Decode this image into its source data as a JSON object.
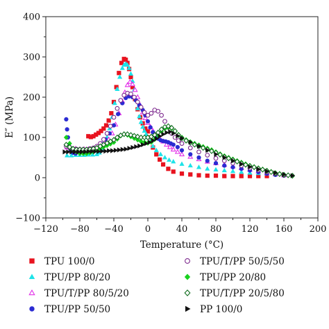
{
  "chart_data": {
    "type": "scatter",
    "title": "",
    "xlabel": "Temperature (°C)",
    "ylabel": "E″ (MPa)",
    "xlim": [
      -120,
      200
    ],
    "ylim": [
      -100,
      400
    ],
    "xticks": [
      -120,
      -80,
      -40,
      0,
      40,
      80,
      120,
      160,
      200
    ],
    "yticks": [
      -100,
      0,
      100,
      200,
      300,
      400
    ],
    "xtick_labels": [
      "−120",
      "−80",
      "−40",
      "0",
      "40",
      "80",
      "120",
      "160",
      "200"
    ],
    "ytick_labels": [
      "−100",
      "0",
      "100",
      "200",
      "300",
      "400"
    ],
    "grid": false,
    "legend_position": "bottom",
    "series": [
      {
        "name": "TPU 100/0",
        "color": "#e8131f",
        "marker": "square",
        "filled": true,
        "x": [
          -70,
          -67,
          -64,
          -61,
          -58,
          -55,
          -52,
          -49,
          -46,
          -43,
          -40,
          -37,
          -34,
          -31,
          -28,
          -26,
          -24,
          -22,
          -20,
          -18,
          -15,
          -12,
          -9,
          -6,
          -3,
          0,
          3,
          6,
          10,
          14,
          18,
          24,
          30,
          40,
          50,
          60,
          70,
          80,
          90,
          100,
          110,
          120,
          130,
          140
        ],
        "y": [
          103,
          101,
          103,
          107,
          111,
          116,
          122,
          130,
          142,
          160,
          188,
          225,
          260,
          285,
          295,
          293,
          285,
          270,
          250,
          225,
          195,
          170,
          150,
          135,
          122,
          115,
          100,
          75,
          58,
          45,
          33,
          22,
          15,
          10,
          8,
          6,
          5,
          5,
          4,
          4,
          4,
          4,
          4,
          4
        ]
      },
      {
        "name": "TPU/PP 80/20",
        "color": "#1ee3e8",
        "marker": "triangle",
        "filled": true,
        "x": [
          -95,
          -90,
          -85,
          -80,
          -75,
          -70,
          -65,
          -60,
          -57,
          -54,
          -51,
          -48,
          -45,
          -42,
          -39,
          -36,
          -33,
          -30,
          -28,
          -26,
          -24,
          -22,
          -20,
          -18,
          -16,
          -14,
          -12,
          -10,
          -8,
          -6,
          -4,
          -2,
          0,
          3,
          6,
          10,
          15,
          20,
          25,
          30,
          40,
          50,
          60,
          70,
          80,
          90,
          100,
          110,
          120,
          130,
          140,
          150,
          160
        ],
        "y": [
          55,
          55,
          56,
          56,
          56,
          57,
          57,
          58,
          62,
          70,
          82,
          100,
          122,
          150,
          185,
          220,
          250,
          272,
          280,
          283,
          280,
          272,
          258,
          240,
          218,
          195,
          172,
          152,
          138,
          126,
          116,
          108,
          100,
          90,
          78,
          68,
          58,
          50,
          44,
          40,
          34,
          30,
          26,
          22,
          20,
          18,
          16,
          14,
          12,
          11,
          10,
          8,
          6
        ]
      },
      {
        "name": "TPU/T/PP 80/5/20",
        "color": "#e22fe8",
        "marker": "triangle",
        "filled": false,
        "x": [
          -95,
          -90,
          -85,
          -80,
          -75,
          -70,
          -65,
          -60,
          -55,
          -50,
          -46,
          -42,
          -38,
          -34,
          -30,
          -27,
          -24,
          -21,
          -18,
          -15,
          -12,
          -9,
          -6,
          -3,
          0,
          3,
          6,
          10,
          14,
          18,
          22,
          26,
          30,
          35,
          40,
          50,
          60,
          70,
          80,
          90,
          100,
          110,
          120,
          130,
          140,
          150,
          160
        ],
        "y": [
          75,
          73,
          72,
          71,
          71,
          71,
          72,
          74,
          78,
          85,
          95,
          110,
          132,
          160,
          190,
          212,
          230,
          238,
          232,
          218,
          200,
          180,
          162,
          148,
          136,
          126,
          116,
          106,
          98,
          90,
          82,
          76,
          70,
          64,
          58,
          52,
          46,
          40,
          36,
          32,
          28,
          24,
          20,
          16,
          12,
          9,
          6
        ]
      },
      {
        "name": "TPU/PP 50/50",
        "color": "#2b2bd2",
        "marker": "circle",
        "filled": true,
        "x": [
          -96,
          -95,
          -94,
          -93,
          -91,
          -88,
          -85,
          -80,
          -75,
          -70,
          -65,
          -60,
          -55,
          -50,
          -45,
          -40,
          -35,
          -30,
          -26,
          -22,
          -18,
          -14,
          -10,
          -6,
          -3,
          0,
          3,
          6,
          9,
          12,
          15,
          18,
          21,
          24,
          27,
          30,
          35,
          40,
          50,
          60,
          70,
          80,
          90,
          100,
          110,
          120,
          130,
          140,
          150,
          160
        ],
        "y": [
          145,
          120,
          100,
          80,
          70,
          62,
          60,
          62,
          65,
          68,
          72,
          78,
          85,
          95,
          110,
          130,
          158,
          185,
          198,
          202,
          200,
          192,
          180,
          168,
          155,
          140,
          125,
          113,
          103,
          97,
          93,
          91,
          90,
          88,
          85,
          82,
          76,
          68,
          58,
          50,
          42,
          36,
          30,
          26,
          22,
          18,
          14,
          10,
          7,
          5
        ]
      },
      {
        "name": "TPU/T/PP 50/5/50",
        "color": "#7d2a8e",
        "marker": "circle",
        "filled": false,
        "x": [
          -96,
          -92,
          -88,
          -84,
          -80,
          -76,
          -72,
          -68,
          -64,
          -60,
          -56,
          -52,
          -48,
          -44,
          -40,
          -36,
          -32,
          -28,
          -24,
          -20,
          -16,
          -12,
          -8,
          -4,
          0,
          4,
          8,
          12,
          16,
          20,
          24,
          28,
          32,
          36,
          40,
          50,
          60,
          70,
          80,
          90,
          100,
          110,
          120,
          130,
          140,
          150,
          160
        ],
        "y": [
          78,
          74,
          72,
          71,
          70,
          70,
          70,
          72,
          74,
          78,
          85,
          95,
          110,
          128,
          150,
          172,
          192,
          205,
          210,
          208,
          200,
          188,
          175,
          162,
          155,
          160,
          168,
          165,
          155,
          140,
          125,
          110,
          100,
          92,
          85,
          74,
          64,
          56,
          48,
          42,
          36,
          30,
          24,
          19,
          14,
          10,
          6
        ]
      },
      {
        "name": "TPU/PP 20/80",
        "color": "#18d11e",
        "marker": "diamond",
        "filled": true,
        "x": [
          -96,
          -92,
          -88,
          -84,
          -80,
          -76,
          -72,
          -68,
          -64,
          -60,
          -56,
          -52,
          -48,
          -44,
          -40,
          -36,
          -32,
          -28,
          -24,
          -20,
          -16,
          -12,
          -8,
          -4,
          0,
          4,
          8,
          12,
          16,
          20,
          24,
          28,
          32,
          36,
          40,
          45,
          50,
          55,
          60,
          65,
          70,
          75,
          80,
          85,
          90,
          95,
          100,
          105,
          110,
          115,
          120,
          125,
          130,
          135,
          140,
          145,
          150,
          155,
          160,
          165,
          170
        ],
        "y": [
          100,
          85,
          72,
          64,
          60,
          60,
          60,
          62,
          64,
          68,
          72,
          76,
          80,
          84,
          88,
          96,
          104,
          108,
          106,
          102,
          98,
          94,
          90,
          88,
          86,
          88,
          95,
          105,
          115,
          122,
          125,
          122,
          115,
          107,
          100,
          94,
          89,
          85,
          81,
          77,
          73,
          69,
          64,
          59,
          54,
          50,
          46,
          42,
          38,
          34,
          30,
          27,
          24,
          21,
          18,
          15,
          12,
          10,
          8,
          6,
          4
        ]
      },
      {
        "name": "TPU/T/PP 20/5/80",
        "color": "#0e6b1c",
        "marker": "diamond",
        "filled": false,
        "x": [
          -96,
          -92,
          -88,
          -84,
          -80,
          -76,
          -72,
          -68,
          -64,
          -60,
          -56,
          -52,
          -48,
          -44,
          -40,
          -36,
          -32,
          -28,
          -24,
          -20,
          -16,
          -12,
          -8,
          -4,
          0,
          4,
          8,
          12,
          16,
          20,
          24,
          28,
          32,
          36,
          40,
          45,
          50,
          55,
          60,
          65,
          70,
          75,
          80,
          85,
          90,
          95,
          100,
          105,
          110,
          115,
          120,
          125,
          130,
          135,
          140,
          145,
          150,
          155,
          160,
          165,
          170
        ],
        "y": [
          82,
          76,
          72,
          70,
          70,
          70,
          70,
          71,
          72,
          74,
          78,
          82,
          86,
          90,
          94,
          100,
          105,
          108,
          108,
          106,
          104,
          102,
          100,
          100,
          100,
          102,
          106,
          112,
          120,
          126,
          128,
          124,
          116,
          106,
          98,
          92,
          87,
          82,
          78,
          74,
          70,
          66,
          62,
          57,
          52,
          48,
          44,
          40,
          36,
          32,
          29,
          26,
          23,
          20,
          17,
          14,
          11,
          9,
          7,
          6,
          5
        ]
      },
      {
        "name": "PP 100/0",
        "color": "#111111",
        "marker": "triangle-right",
        "filled": true,
        "x": [
          -98,
          -94,
          -90,
          -86,
          -82,
          -78,
          -74,
          -70,
          -66,
          -62,
          -58,
          -54,
          -50,
          -46,
          -42,
          -38,
          -34,
          -30,
          -26,
          -22,
          -18,
          -14,
          -10,
          -6,
          -2,
          2,
          6,
          10,
          14,
          18,
          22,
          26,
          30,
          35,
          40,
          50,
          60,
          70,
          80,
          90,
          100,
          110,
          120,
          130,
          140,
          150,
          160,
          170
        ],
        "y": [
          64,
          64,
          64,
          64,
          64,
          64,
          64,
          65,
          65,
          65,
          65,
          66,
          66,
          67,
          67,
          68,
          69,
          70,
          71,
          73,
          75,
          77,
          79,
          82,
          85,
          88,
          92,
          97,
          103,
          108,
          112,
          114,
          110,
          104,
          98,
          88,
          78,
          68,
          58,
          50,
          42,
          34,
          27,
          21,
          16,
          12,
          8,
          5
        ]
      }
    ]
  }
}
